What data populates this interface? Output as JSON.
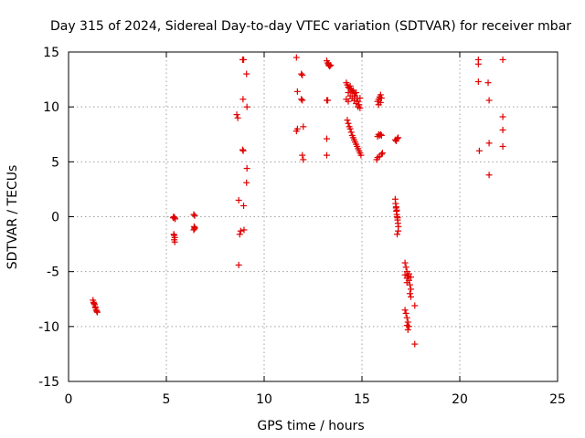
{
  "chart_data": {
    "type": "scatter",
    "title": "Day 315 of 2024, Sidereal Day-to-day VTEC variation (SDTVAR) for receiver mbar",
    "xlabel": "GPS time / hours",
    "ylabel": "SDTVAR / TECUs",
    "xlim": [
      0,
      25
    ],
    "ylim": [
      -15,
      15
    ],
    "xticks": [
      0,
      5,
      10,
      15,
      20,
      25
    ],
    "yticks": [
      -15,
      -10,
      -5,
      0,
      5,
      10,
      15
    ],
    "grid": true,
    "marker": "+",
    "color": "#e00000",
    "points": [
      [
        1.25,
        -7.6
      ],
      [
        1.28,
        -7.8
      ],
      [
        1.3,
        -7.9
      ],
      [
        1.33,
        -8.0
      ],
      [
        1.36,
        -8.2
      ],
      [
        1.38,
        -8.3
      ],
      [
        1.41,
        -8.5
      ],
      [
        1.44,
        -8.6
      ],
      [
        1.47,
        -8.7
      ],
      [
        5.35,
        -0.1
      ],
      [
        5.38,
        0.0
      ],
      [
        5.42,
        -0.1
      ],
      [
        5.45,
        -0.2
      ],
      [
        5.4,
        -1.7
      ],
      [
        5.43,
        -1.9
      ],
      [
        5.4,
        -2.1
      ],
      [
        5.43,
        -2.3
      ],
      [
        5.38,
        -1.6
      ],
      [
        6.4,
        0.2
      ],
      [
        6.45,
        0.1
      ],
      [
        6.42,
        -0.9
      ],
      [
        6.45,
        -1.0
      ],
      [
        6.4,
        -1.2
      ],
      [
        6.44,
        -1.1
      ],
      [
        8.6,
        9.3
      ],
      [
        8.65,
        9.0
      ],
      [
        8.7,
        1.5
      ],
      [
        8.75,
        -1.6
      ],
      [
        8.8,
        -1.3
      ],
      [
        8.7,
        -4.4
      ],
      [
        8.9,
        14.3
      ],
      [
        8.95,
        14.3
      ],
      [
        8.92,
        10.7
      ],
      [
        8.9,
        6.1
      ],
      [
        8.93,
        6.0
      ],
      [
        8.95,
        1.0
      ],
      [
        8.97,
        -1.2
      ],
      [
        9.1,
        13.0
      ],
      [
        9.12,
        10.0
      ],
      [
        9.12,
        4.4
      ],
      [
        9.1,
        3.1
      ],
      [
        11.65,
        14.5
      ],
      [
        11.7,
        11.4
      ],
      [
        11.65,
        7.8
      ],
      [
        11.7,
        8.0
      ],
      [
        11.9,
        13.0
      ],
      [
        11.95,
        12.9
      ],
      [
        11.95,
        10.6
      ],
      [
        11.9,
        10.7
      ],
      [
        12.0,
        8.2
      ],
      [
        11.95,
        5.6
      ],
      [
        12.0,
        5.2
      ],
      [
        13.2,
        14.2
      ],
      [
        13.25,
        14.0
      ],
      [
        13.3,
        13.8
      ],
      [
        13.35,
        13.7
      ],
      [
        13.4,
        13.8
      ],
      [
        13.3,
        13.9
      ],
      [
        13.2,
        10.6
      ],
      [
        13.25,
        10.6
      ],
      [
        13.2,
        7.1
      ],
      [
        13.2,
        5.6
      ],
      [
        14.2,
        12.2
      ],
      [
        14.25,
        12.0
      ],
      [
        14.3,
        11.8
      ],
      [
        14.35,
        11.7
      ],
      [
        14.4,
        11.9
      ],
      [
        14.45,
        11.6
      ],
      [
        14.5,
        11.4
      ],
      [
        14.55,
        11.5
      ],
      [
        14.6,
        11.2
      ],
      [
        14.65,
        11.0
      ],
      [
        14.7,
        11.3
      ],
      [
        14.75,
        10.8
      ],
      [
        14.8,
        10.5
      ],
      [
        14.85,
        10.2
      ],
      [
        14.9,
        9.9
      ],
      [
        14.3,
        11.3
      ],
      [
        14.4,
        11.0
      ],
      [
        14.5,
        10.8
      ],
      [
        14.6,
        10.6
      ],
      [
        14.7,
        10.3
      ],
      [
        14.8,
        10.0
      ],
      [
        14.2,
        10.7
      ],
      [
        14.3,
        10.5
      ],
      [
        14.9,
        10.8
      ],
      [
        14.25,
        8.8
      ],
      [
        14.3,
        8.5
      ],
      [
        14.35,
        8.2
      ],
      [
        14.4,
        8.0
      ],
      [
        14.45,
        7.7
      ],
      [
        14.5,
        7.4
      ],
      [
        14.55,
        7.2
      ],
      [
        14.6,
        7.0
      ],
      [
        14.65,
        6.8
      ],
      [
        14.7,
        6.6
      ],
      [
        14.75,
        6.4
      ],
      [
        14.8,
        6.2
      ],
      [
        14.85,
        6.0
      ],
      [
        14.9,
        5.8
      ],
      [
        14.95,
        5.6
      ],
      [
        15.8,
        10.5
      ],
      [
        15.85,
        10.7
      ],
      [
        15.9,
        10.9
      ],
      [
        15.95,
        11.1
      ],
      [
        16.0,
        10.8
      ],
      [
        15.85,
        10.2
      ],
      [
        15.95,
        10.4
      ],
      [
        15.8,
        7.3
      ],
      [
        15.85,
        7.5
      ],
      [
        15.9,
        7.4
      ],
      [
        15.95,
        7.5
      ],
      [
        16.0,
        7.4
      ],
      [
        15.75,
        5.2
      ],
      [
        15.8,
        5.4
      ],
      [
        15.9,
        5.5
      ],
      [
        16.0,
        5.7
      ],
      [
        16.05,
        5.8
      ],
      [
        16.7,
        7.0
      ],
      [
        16.75,
        6.9
      ],
      [
        16.8,
        7.1
      ],
      [
        16.85,
        7.2
      ],
      [
        16.7,
        1.6
      ],
      [
        16.72,
        1.2
      ],
      [
        16.74,
        0.8
      ],
      [
        16.76,
        0.5
      ],
      [
        16.78,
        0.2
      ],
      [
        16.8,
        0.0
      ],
      [
        16.82,
        -0.3
      ],
      [
        16.84,
        -0.6
      ],
      [
        16.86,
        -0.9
      ],
      [
        16.85,
        -1.3
      ],
      [
        16.8,
        -1.6
      ],
      [
        16.75,
        0.9
      ],
      [
        16.78,
        0.6
      ],
      [
        16.82,
        -0.1
      ],
      [
        17.2,
        -4.2
      ],
      [
        17.25,
        -4.6
      ],
      [
        17.3,
        -5.0
      ],
      [
        17.35,
        -5.4
      ],
      [
        17.4,
        -5.8
      ],
      [
        17.45,
        -6.2
      ],
      [
        17.5,
        -6.6
      ],
      [
        17.45,
        -7.0
      ],
      [
        17.5,
        -7.3
      ],
      [
        17.3,
        -5.6
      ],
      [
        17.4,
        -5.2
      ],
      [
        17.5,
        -5.5
      ],
      [
        17.2,
        -5.3
      ],
      [
        17.3,
        -6.0
      ],
      [
        17.2,
        -8.5
      ],
      [
        17.25,
        -8.8
      ],
      [
        17.3,
        -9.2
      ],
      [
        17.35,
        -9.6
      ],
      [
        17.4,
        -10.0
      ],
      [
        17.35,
        -10.3
      ],
      [
        17.3,
        -9.9
      ],
      [
        17.7,
        -8.1
      ],
      [
        17.7,
        -11.6
      ],
      [
        20.95,
        14.3
      ],
      [
        20.95,
        13.9
      ],
      [
        20.95,
        12.3
      ],
      [
        21.0,
        6.0
      ],
      [
        21.45,
        12.2
      ],
      [
        21.5,
        10.6
      ],
      [
        21.5,
        6.7
      ],
      [
        21.5,
        3.8
      ],
      [
        22.2,
        14.3
      ],
      [
        22.2,
        9.1
      ],
      [
        22.2,
        7.9
      ],
      [
        22.2,
        6.4
      ]
    ]
  }
}
